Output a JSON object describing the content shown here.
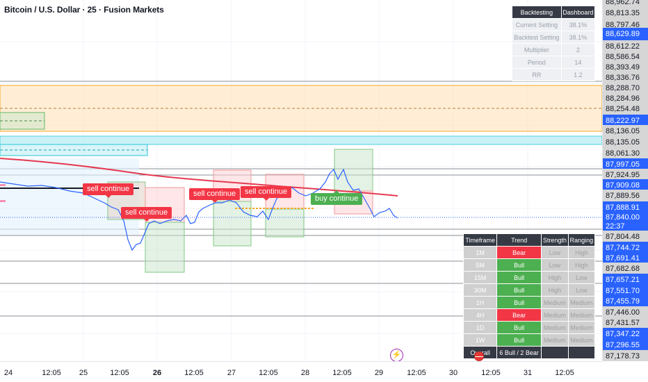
{
  "chart": {
    "title": "Bitcoin / U.S. Dollar · 25 · Fusion Markets"
  },
  "price_axis": [
    {
      "label": "88,962.74",
      "style": "gray"
    },
    {
      "label": "88,813.35",
      "style": "gray"
    },
    {
      "label": "88,797.46",
      "style": "gray"
    },
    {
      "label": "88,629.89",
      "style": "blue"
    },
    {
      "label": "88,612.22",
      "style": "gray"
    },
    {
      "label": "88,586.54",
      "style": "gray"
    },
    {
      "label": "88,393.49",
      "style": "gray"
    },
    {
      "label": "88,336.76",
      "style": "gray"
    },
    {
      "label": "88,288.70",
      "style": "gray"
    },
    {
      "label": "88,284.96",
      "style": "gray"
    },
    {
      "label": "88,254.48",
      "style": "gray"
    },
    {
      "label": "88,222.97",
      "style": "blue"
    },
    {
      "label": "88,136.05",
      "style": "gray"
    },
    {
      "label": "88,135.05",
      "style": "gray"
    },
    {
      "label": "88,061.30",
      "style": "gray"
    },
    {
      "label": "87,997.05",
      "style": "blue"
    },
    {
      "label": "87,924.95",
      "style": "gray"
    },
    {
      "label": "87,909.08",
      "style": "blue"
    },
    {
      "label": "87,889.56",
      "style": "gray"
    },
    {
      "label": "87,888.91",
      "style": "blue"
    },
    {
      "label": "87,840.00",
      "style": "blue"
    },
    {
      "label": "22:37",
      "style": "blue"
    },
    {
      "label": "87,804.48",
      "style": "gray"
    },
    {
      "label": "87,744.72",
      "style": "blue"
    },
    {
      "label": "87,691.41",
      "style": "blue"
    },
    {
      "label": "87,682.68",
      "style": "gray"
    },
    {
      "label": "87,657.21",
      "style": "blue"
    },
    {
      "label": "87,551.70",
      "style": "blue"
    },
    {
      "label": "87,455.79",
      "style": "blue"
    },
    {
      "label": "87,446.00",
      "style": "gray"
    },
    {
      "label": "87,431.57",
      "style": "gray"
    },
    {
      "label": "87,347.22",
      "style": "blue"
    },
    {
      "label": "87,296.55",
      "style": "blue"
    },
    {
      "label": "87,178.73",
      "style": "gray"
    }
  ],
  "time_axis": [
    {
      "label": "24",
      "bold": false
    },
    {
      "label": "12:05",
      "bold": false
    },
    {
      "label": "25",
      "bold": false
    },
    {
      "label": "12:05",
      "bold": false
    },
    {
      "label": "26",
      "bold": true
    },
    {
      "label": "12:05",
      "bold": false
    },
    {
      "label": "27",
      "bold": false
    },
    {
      "label": "12:05",
      "bold": false
    },
    {
      "label": "28",
      "bold": false
    },
    {
      "label": "12:05",
      "bold": false
    },
    {
      "label": "29",
      "bold": false
    },
    {
      "label": "12:05",
      "bold": false
    },
    {
      "label": "30",
      "bold": false
    },
    {
      "label": "12:05",
      "bold": false
    },
    {
      "label": "31",
      "bold": false
    },
    {
      "label": "12:05",
      "bold": false
    }
  ],
  "signals": [
    {
      "label": "sell continue",
      "kind": "sell"
    },
    {
      "label": "sell continue",
      "kind": "sell"
    },
    {
      "label": "sell continue",
      "kind": "sell"
    },
    {
      "label": "sell continue",
      "kind": "sell"
    },
    {
      "label": "buy continue",
      "kind": "buy"
    }
  ],
  "backtest_table": {
    "headers": [
      "Backtesting",
      "Dashboard"
    ],
    "rows": [
      [
        "Current Setting",
        "38.1%"
      ],
      [
        "Backtest Setting",
        "38.1%"
      ],
      [
        "Multiplier",
        "2"
      ],
      [
        "Period",
        "14"
      ],
      [
        "RR",
        "1.2"
      ]
    ]
  },
  "trend_table": {
    "headers": [
      "Timeframe",
      "Trend",
      "Strength",
      "Ranging"
    ],
    "rows": [
      [
        "1M",
        "Bear",
        "Low",
        "High"
      ],
      [
        "5M",
        "Bull",
        "Low",
        "High"
      ],
      [
        "15M",
        "Bull",
        "High",
        "Low"
      ],
      [
        "30M",
        "Bull",
        "High",
        "Low"
      ],
      [
        "1H",
        "Bull",
        "Medium",
        "Medium"
      ],
      [
        "4H",
        "Bear",
        "Medium",
        "Medium"
      ],
      [
        "1D",
        "Bull",
        "Medium",
        "Medium"
      ],
      [
        "1W",
        "Bull",
        "Medium",
        "Medium"
      ]
    ],
    "overall_label": "Overall",
    "overall_value": "6 Bull / 2 Bear"
  },
  "colors": {
    "bull": "#4caf50",
    "bear": "#f23645",
    "candle": "#2962ff",
    "ma_line": "#e53950",
    "orange_zone": "#ffe0b2",
    "cyan_zone": "#b2ebf2"
  },
  "icons": {
    "flash": "lightning-icon",
    "flag": "us-flag-icon"
  }
}
